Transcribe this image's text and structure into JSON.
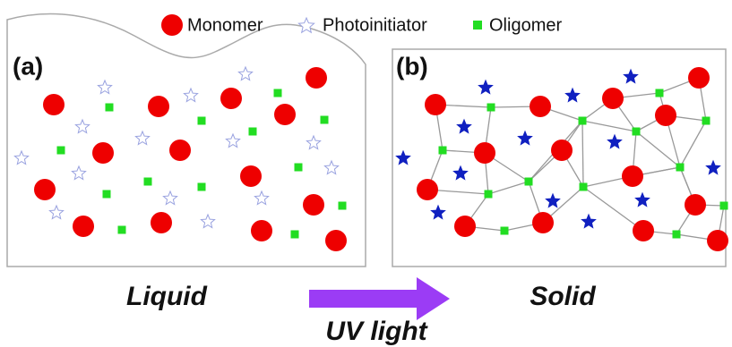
{
  "legend": {
    "items": [
      {
        "label": "Monomer"
      },
      {
        "label": "Photoinitiator"
      },
      {
        "label": "Oligomer"
      }
    ]
  },
  "panels": [
    {
      "label": "(a)",
      "state": "Liquid"
    },
    {
      "label": "(b)",
      "state": "Solid"
    }
  ],
  "arrow": {
    "label": "UV light"
  }
}
